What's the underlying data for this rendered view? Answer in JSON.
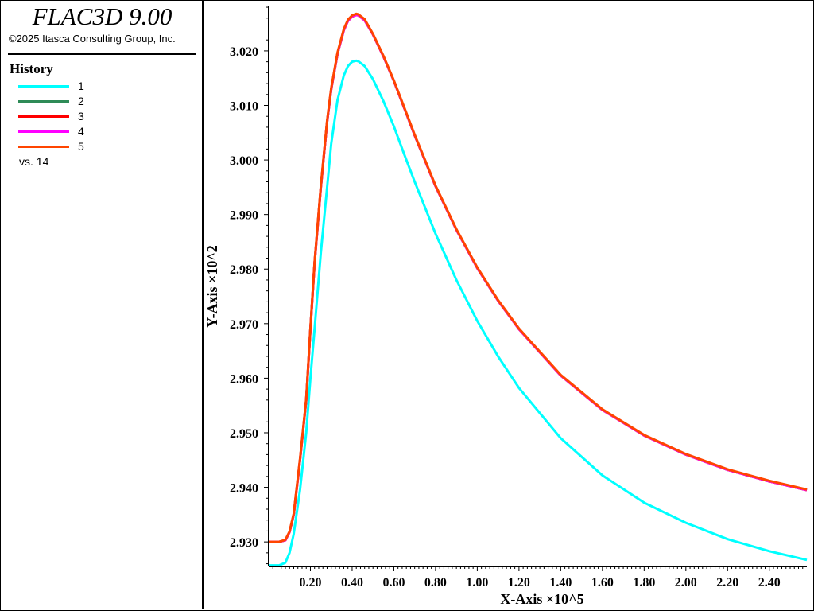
{
  "app": {
    "title": "FLAC3D 9.00",
    "copyright": "©2025 Itasca Consulting Group, Inc."
  },
  "legend": {
    "heading": "History",
    "items": [
      {
        "label": "1",
        "color": "#00ffff"
      },
      {
        "label": "2",
        "color": "#2e8b57"
      },
      {
        "label": "3",
        "color": "#ff0000"
      },
      {
        "label": "4",
        "color": "#ff00ff"
      },
      {
        "label": "5",
        "color": "#ff4500"
      }
    ],
    "vs_text": "vs. 14"
  },
  "chart_data": {
    "type": "line",
    "xlabel": "X-Axis ×10^5",
    "ylabel": "Y-Axis ×10^2",
    "xlim": [
      0,
      2.58
    ],
    "ylim": [
      2.9255,
      3.0283
    ],
    "xticks": [
      "0.20",
      "0.40",
      "0.60",
      "0.80",
      "1.00",
      "1.20",
      "1.40",
      "1.60",
      "1.80",
      "2.00",
      "2.20",
      "2.40"
    ],
    "yticks": [
      "2.930",
      "2.940",
      "2.950",
      "2.960",
      "2.970",
      "2.980",
      "2.990",
      "3.000",
      "3.010",
      "3.020"
    ],
    "grid": false,
    "legend_position": "left-panel",
    "series": [
      {
        "name": "1",
        "color": "#00ffff",
        "x": [
          0.0,
          0.05,
          0.08,
          0.1,
          0.12,
          0.15,
          0.18,
          0.2,
          0.22,
          0.25,
          0.28,
          0.3,
          0.33,
          0.36,
          0.38,
          0.4,
          0.42,
          0.43,
          0.46,
          0.5,
          0.55,
          0.6,
          0.65,
          0.7,
          0.8,
          0.9,
          1.0,
          1.1,
          1.2,
          1.4,
          1.6,
          1.8,
          2.0,
          2.2,
          2.4,
          2.58
        ],
        "y": [
          2.9257,
          2.9257,
          2.9262,
          2.928,
          2.9315,
          2.9395,
          2.95,
          2.96,
          2.969,
          2.983,
          2.995,
          3.003,
          3.011,
          3.0155,
          3.0172,
          3.018,
          3.0182,
          3.0181,
          3.0172,
          3.0148,
          3.0108,
          3.0062,
          3.001,
          2.996,
          2.9865,
          2.978,
          2.9705,
          2.964,
          2.9582,
          2.949,
          2.9422,
          2.9372,
          2.9335,
          2.9305,
          2.9283,
          2.9267
        ]
      },
      {
        "name": "2",
        "color": "#2e8b57",
        "x": [
          0.0,
          0.05,
          0.08,
          0.1,
          0.12,
          0.15,
          0.18,
          0.2,
          0.22,
          0.25,
          0.28,
          0.3,
          0.33,
          0.36,
          0.38,
          0.4,
          0.42,
          0.43,
          0.46,
          0.5,
          0.55,
          0.6,
          0.65,
          0.7,
          0.8,
          0.9,
          1.0,
          1.1,
          1.2,
          1.4,
          1.6,
          1.8,
          2.0,
          2.2,
          2.4,
          2.58
        ],
        "y": [
          2.93,
          2.93,
          2.9303,
          2.9318,
          2.935,
          2.945,
          2.956,
          2.969,
          2.981,
          2.995,
          3.007,
          3.013,
          3.0195,
          3.0238,
          3.0255,
          3.0263,
          3.0266,
          3.0265,
          3.0256,
          3.023,
          3.019,
          3.0145,
          3.0095,
          3.0045,
          2.9952,
          2.9872,
          2.9802,
          2.9742,
          2.969,
          2.9605,
          2.9542,
          2.9495,
          2.946,
          2.9432,
          2.9411,
          2.9395
        ]
      },
      {
        "name": "3",
        "color": "#ff0000",
        "x": [
          0.0,
          0.05,
          0.08,
          0.1,
          0.12,
          0.15,
          0.18,
          0.2,
          0.22,
          0.25,
          0.28,
          0.3,
          0.33,
          0.36,
          0.38,
          0.4,
          0.42,
          0.43,
          0.46,
          0.5,
          0.55,
          0.6,
          0.65,
          0.7,
          0.8,
          0.9,
          1.0,
          1.1,
          1.2,
          1.4,
          1.6,
          1.8,
          2.0,
          2.2,
          2.4,
          2.58
        ],
        "y": [
          2.93,
          2.93,
          2.9303,
          2.9318,
          2.935,
          2.945,
          2.956,
          2.969,
          2.981,
          2.995,
          3.007,
          3.013,
          3.0195,
          3.0238,
          3.0255,
          3.0263,
          3.0266,
          3.0265,
          3.0256,
          3.023,
          3.019,
          3.0145,
          3.0095,
          3.0045,
          2.9952,
          2.9872,
          2.9802,
          2.9742,
          2.969,
          2.9605,
          2.9542,
          2.9495,
          2.946,
          2.9432,
          2.9411,
          2.9395
        ]
      },
      {
        "name": "4",
        "color": "#ff00ff",
        "x": [
          0.0,
          0.05,
          0.08,
          0.1,
          0.12,
          0.15,
          0.18,
          0.2,
          0.22,
          0.25,
          0.28,
          0.3,
          0.33,
          0.36,
          0.38,
          0.4,
          0.42,
          0.43,
          0.46,
          0.5,
          0.55,
          0.6,
          0.65,
          0.7,
          0.8,
          0.9,
          1.0,
          1.1,
          1.2,
          1.4,
          1.6,
          1.8,
          2.0,
          2.2,
          2.4,
          2.58
        ],
        "y": [
          2.93,
          2.93,
          2.9303,
          2.9318,
          2.935,
          2.945,
          2.956,
          2.969,
          2.981,
          2.995,
          3.007,
          3.013,
          3.0195,
          3.0238,
          3.0255,
          3.0263,
          3.0266,
          3.0265,
          3.0256,
          3.023,
          3.019,
          3.0145,
          3.0095,
          3.0045,
          2.9952,
          2.9872,
          2.9802,
          2.9742,
          2.969,
          2.9605,
          2.9542,
          2.9495,
          2.946,
          2.9432,
          2.9411,
          2.9395
        ]
      },
      {
        "name": "5",
        "color": "#ff4500",
        "x": [
          0.0,
          0.05,
          0.08,
          0.1,
          0.12,
          0.15,
          0.18,
          0.2,
          0.22,
          0.25,
          0.28,
          0.3,
          0.33,
          0.36,
          0.38,
          0.4,
          0.42,
          0.43,
          0.46,
          0.5,
          0.55,
          0.6,
          0.65,
          0.7,
          0.8,
          0.9,
          1.0,
          1.1,
          1.2,
          1.4,
          1.6,
          1.8,
          2.0,
          2.2,
          2.4,
          2.58
        ],
        "y": [
          2.93,
          2.93,
          2.9304,
          2.9319,
          2.9352,
          2.9452,
          2.9562,
          2.9692,
          2.9812,
          2.9952,
          3.0072,
          3.0132,
          3.0197,
          3.024,
          3.0257,
          3.0265,
          3.0268,
          3.0267,
          3.0258,
          3.0231,
          3.0191,
          3.0146,
          3.0096,
          3.0046,
          2.9953,
          2.9873,
          2.9803,
          2.9743,
          2.9691,
          2.9606,
          2.9543,
          2.9496,
          2.9461,
          2.9433,
          2.9412,
          2.9396
        ]
      }
    ]
  }
}
